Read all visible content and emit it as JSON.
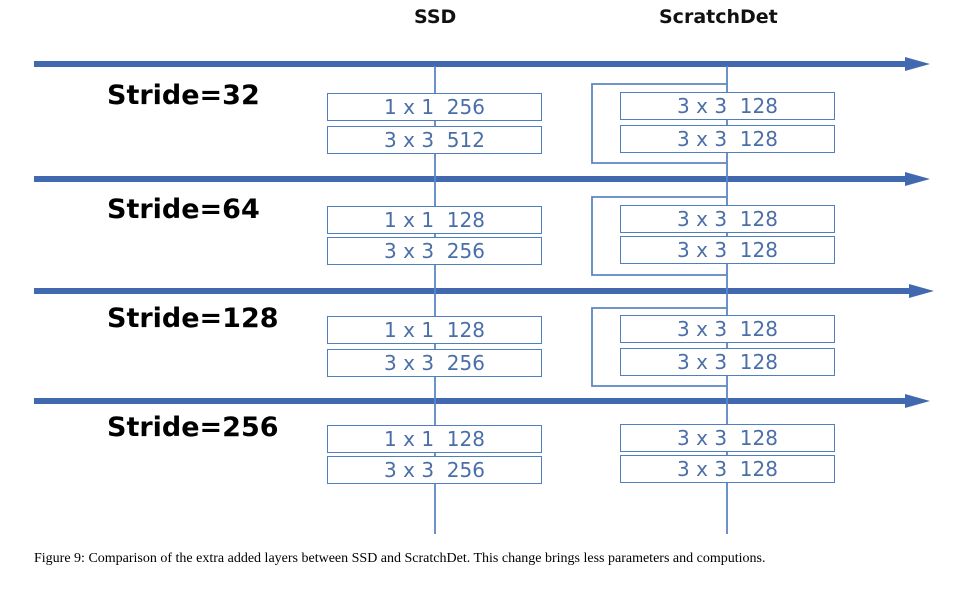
{
  "columns": {
    "ssd": "SSD",
    "scratchdet": "ScratchDet"
  },
  "colors": {
    "arrow": "#4169b0",
    "line": "#5b86c4",
    "box_border": "#4f7fbf",
    "box_text": "#4a6fa8"
  },
  "stages": [
    {
      "stride": "Stride=32",
      "ssd": [
        "1 x 1  256",
        "3 x 3  512"
      ],
      "scratchdet": [
        "3 x 3  128",
        "3 x 3  128"
      ]
    },
    {
      "stride": "Stride=64",
      "ssd": [
        "1 x 1  128",
        "3 x 3  256"
      ],
      "scratchdet": [
        "3 x 3  128",
        "3 x 3  128"
      ]
    },
    {
      "stride": "Stride=128",
      "ssd": [
        "1 x 1  128",
        "3 x 3  256"
      ],
      "scratchdet": [
        "3 x 3  128",
        "3 x 3  128"
      ]
    },
    {
      "stride": "Stride=256",
      "ssd": [
        "1 x 1  128",
        "3 x 3  256"
      ],
      "scratchdet": [
        "3 x 3  128",
        "3 x 3  128"
      ]
    }
  ],
  "caption": "Figure 9: Comparison of the extra added layers between SSD and ScratchDet. This change brings less parameters and computions."
}
